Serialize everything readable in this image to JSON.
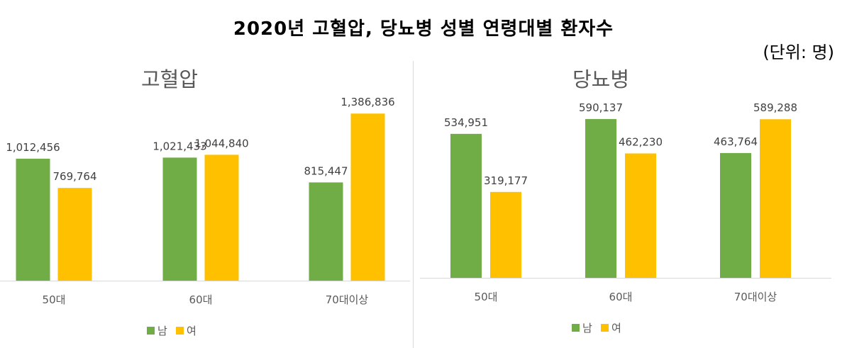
{
  "header": {
    "title": "2020년 고혈압, 당뇨병 성별 연령대별 환자수",
    "unit": "(단위: 명)"
  },
  "colors": {
    "male": "#70AD47",
    "female": "#FFC000"
  },
  "chart_data": [
    {
      "type": "bar",
      "title": "고혈압",
      "categories": [
        "50대",
        "60대",
        "70대이상"
      ],
      "series": [
        {
          "name": "남",
          "values": [
            1012456,
            1021433,
            815447
          ],
          "labels": [
            "1,012,456",
            "1,021,433",
            "815,447"
          ]
        },
        {
          "name": "여",
          "values": [
            769764,
            1044840,
            1386836
          ],
          "labels": [
            "769,764",
            "1,044,840",
            "1,386,836"
          ]
        }
      ],
      "ylim": [
        0,
        1600000
      ],
      "grid": false,
      "legend": "bottom"
    },
    {
      "type": "bar",
      "title": "당뇨병",
      "categories": [
        "50대",
        "60대",
        "70대이상"
      ],
      "series": [
        {
          "name": "남",
          "values": [
            534951,
            590137,
            463764
          ],
          "labels": [
            "534,951",
            "590,137",
            "463,764"
          ]
        },
        {
          "name": "여",
          "values": [
            319177,
            462230,
            589288
          ],
          "labels": [
            "319,177",
            "462,230",
            "589,288"
          ]
        }
      ],
      "ylim": [
        0,
        690000
      ],
      "grid": false,
      "legend": "bottom"
    }
  ]
}
